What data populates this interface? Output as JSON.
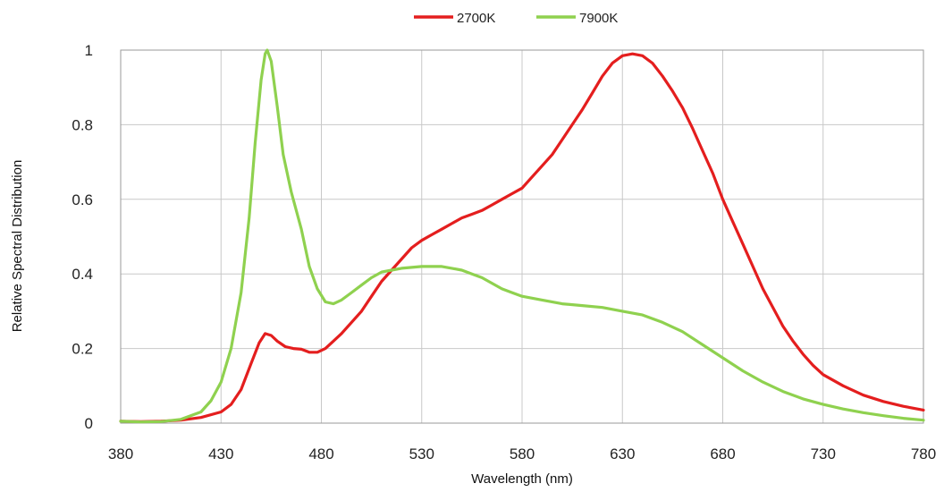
{
  "chart_data": {
    "type": "line",
    "title": "",
    "xlabel": "Wavelength (nm)",
    "ylabel": "Relative Spectral Distribution",
    "xlim": [
      380,
      780
    ],
    "ylim": [
      0,
      1
    ],
    "x_ticks": [
      380,
      430,
      480,
      530,
      580,
      630,
      680,
      730,
      780
    ],
    "x_tick_labels": [
      "380",
      "430",
      "480",
      "530",
      "580",
      "630",
      "680",
      "730",
      "780"
    ],
    "y_ticks": [
      0,
      0.2,
      0.4,
      0.6,
      0.8,
      1
    ],
    "y_tick_labels": [
      "0",
      "0.2",
      "0.4",
      "0.6",
      "0.8",
      "1"
    ],
    "grid": true,
    "legend_position": "top-center",
    "series": [
      {
        "name": "2700K",
        "color": "#e41e1e",
        "points": [
          [
            380,
            0.005
          ],
          [
            390,
            0.004
          ],
          [
            400,
            0.005
          ],
          [
            410,
            0.008
          ],
          [
            420,
            0.015
          ],
          [
            430,
            0.03
          ],
          [
            435,
            0.05
          ],
          [
            440,
            0.09
          ],
          [
            445,
            0.16
          ],
          [
            449,
            0.215
          ],
          [
            452,
            0.24
          ],
          [
            455,
            0.235
          ],
          [
            458,
            0.22
          ],
          [
            462,
            0.205
          ],
          [
            466,
            0.2
          ],
          [
            470,
            0.198
          ],
          [
            474,
            0.19
          ],
          [
            478,
            0.19
          ],
          [
            482,
            0.2
          ],
          [
            486,
            0.22
          ],
          [
            490,
            0.24
          ],
          [
            495,
            0.27
          ],
          [
            500,
            0.3
          ],
          [
            505,
            0.34
          ],
          [
            510,
            0.38
          ],
          [
            515,
            0.41
          ],
          [
            520,
            0.44
          ],
          [
            525,
            0.47
          ],
          [
            530,
            0.49
          ],
          [
            535,
            0.505
          ],
          [
            540,
            0.52
          ],
          [
            545,
            0.535
          ],
          [
            550,
            0.55
          ],
          [
            555,
            0.56
          ],
          [
            560,
            0.57
          ],
          [
            565,
            0.585
          ],
          [
            570,
            0.6
          ],
          [
            575,
            0.615
          ],
          [
            580,
            0.63
          ],
          [
            585,
            0.66
          ],
          [
            590,
            0.69
          ],
          [
            595,
            0.72
          ],
          [
            600,
            0.76
          ],
          [
            605,
            0.8
          ],
          [
            610,
            0.84
          ],
          [
            615,
            0.885
          ],
          [
            620,
            0.93
          ],
          [
            625,
            0.965
          ],
          [
            630,
            0.985
          ],
          [
            635,
            0.99
          ],
          [
            640,
            0.985
          ],
          [
            645,
            0.965
          ],
          [
            650,
            0.93
          ],
          [
            655,
            0.89
          ],
          [
            660,
            0.845
          ],
          [
            665,
            0.79
          ],
          [
            670,
            0.73
          ],
          [
            675,
            0.67
          ],
          [
            680,
            0.6
          ],
          [
            685,
            0.54
          ],
          [
            690,
            0.48
          ],
          [
            695,
            0.42
          ],
          [
            700,
            0.36
          ],
          [
            705,
            0.31
          ],
          [
            710,
            0.26
          ],
          [
            715,
            0.22
          ],
          [
            720,
            0.185
          ],
          [
            725,
            0.155
          ],
          [
            730,
            0.13
          ],
          [
            740,
            0.1
          ],
          [
            750,
            0.075
          ],
          [
            760,
            0.058
          ],
          [
            770,
            0.045
          ],
          [
            780,
            0.035
          ]
        ]
      },
      {
        "name": "7900K",
        "color": "#8fd14f",
        "points": [
          [
            380,
            0.005
          ],
          [
            390,
            0.003
          ],
          [
            400,
            0.004
          ],
          [
            410,
            0.01
          ],
          [
            420,
            0.03
          ],
          [
            425,
            0.06
          ],
          [
            430,
            0.11
          ],
          [
            435,
            0.2
          ],
          [
            440,
            0.35
          ],
          [
            444,
            0.55
          ],
          [
            447,
            0.75
          ],
          [
            450,
            0.92
          ],
          [
            452,
            0.99
          ],
          [
            453,
            1.0
          ],
          [
            455,
            0.97
          ],
          [
            458,
            0.85
          ],
          [
            461,
            0.72
          ],
          [
            465,
            0.62
          ],
          [
            470,
            0.52
          ],
          [
            474,
            0.42
          ],
          [
            478,
            0.36
          ],
          [
            482,
            0.325
          ],
          [
            486,
            0.32
          ],
          [
            490,
            0.33
          ],
          [
            495,
            0.35
          ],
          [
            500,
            0.37
          ],
          [
            505,
            0.39
          ],
          [
            510,
            0.405
          ],
          [
            515,
            0.41
          ],
          [
            520,
            0.415
          ],
          [
            530,
            0.42
          ],
          [
            540,
            0.42
          ],
          [
            545,
            0.415
          ],
          [
            550,
            0.41
          ],
          [
            555,
            0.4
          ],
          [
            560,
            0.39
          ],
          [
            565,
            0.375
          ],
          [
            570,
            0.36
          ],
          [
            575,
            0.35
          ],
          [
            580,
            0.34
          ],
          [
            590,
            0.33
          ],
          [
            600,
            0.32
          ],
          [
            610,
            0.315
          ],
          [
            620,
            0.31
          ],
          [
            630,
            0.3
          ],
          [
            640,
            0.29
          ],
          [
            650,
            0.27
          ],
          [
            660,
            0.245
          ],
          [
            670,
            0.21
          ],
          [
            680,
            0.175
          ],
          [
            690,
            0.14
          ],
          [
            700,
            0.11
          ],
          [
            710,
            0.085
          ],
          [
            720,
            0.065
          ],
          [
            730,
            0.05
          ],
          [
            740,
            0.038
          ],
          [
            750,
            0.028
          ],
          [
            760,
            0.02
          ],
          [
            770,
            0.013
          ],
          [
            780,
            0.008
          ]
        ]
      }
    ]
  }
}
